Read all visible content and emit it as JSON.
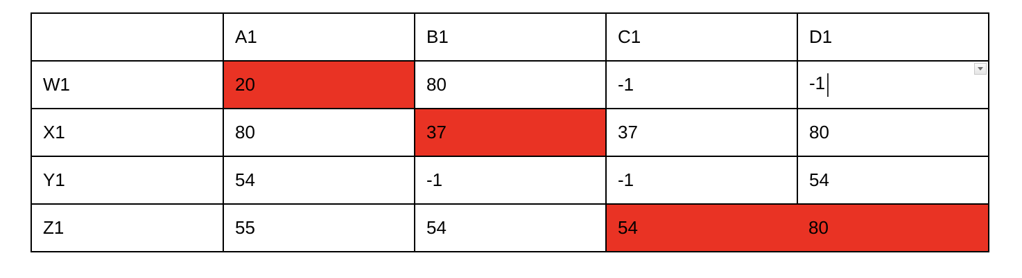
{
  "table": {
    "header": [
      "",
      "A1",
      "B1",
      "C1",
      "D1"
    ],
    "rows": [
      {
        "label": "W1",
        "cells": [
          "20",
          "80",
          "-1",
          "-1"
        ]
      },
      {
        "label": "X1",
        "cells": [
          "80",
          "37",
          "37",
          "80"
        ]
      },
      {
        "label": "Y1",
        "cells": [
          "54",
          "-1",
          "-1",
          "54"
        ]
      },
      {
        "label": "Z1",
        "cells": [
          "55",
          "54",
          "54",
          "80"
        ]
      }
    ]
  },
  "highlight_color": "#e93324",
  "highlighted_cells": [
    "W1:A1",
    "X1:B1",
    "Z1:C1",
    "Z1:D1"
  ],
  "active_cell": "W1:D1",
  "icons": {
    "dropdown": "chevron-down-icon"
  }
}
